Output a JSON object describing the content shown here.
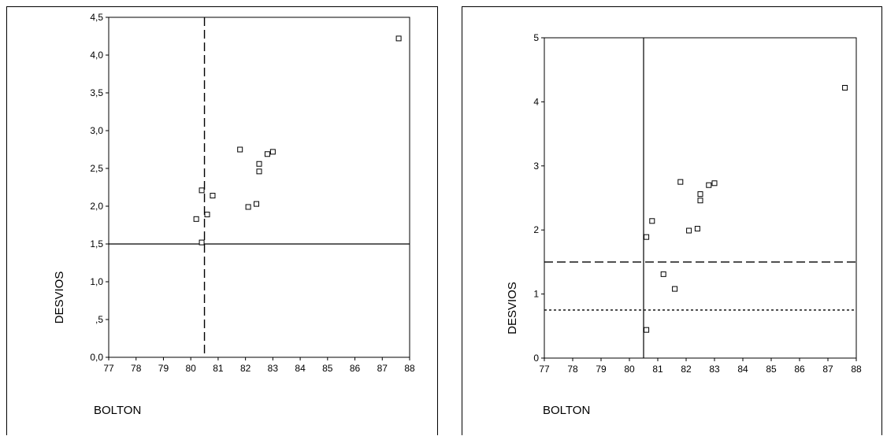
{
  "chart_data": [
    {
      "type": "scatter",
      "title": "",
      "xlabel": "BOLTON",
      "ylabel": "DESVIOS",
      "xlim": [
        77,
        88
      ],
      "ylim": [
        0,
        4.5
      ],
      "xticks": [
        77,
        78,
        79,
        80,
        81,
        82,
        83,
        84,
        85,
        86,
        87,
        88
      ],
      "xtick_labels": [
        "77",
        "78",
        "79",
        "80",
        "81",
        "82",
        "83",
        "84",
        "85",
        "86",
        "87",
        "88"
      ],
      "yticks": [
        0,
        0.5,
        1,
        1.5,
        2,
        2.5,
        3,
        3.5,
        4,
        4.5
      ],
      "ytick_labels": [
        "0,0",
        ",5",
        "1,0",
        "1,5",
        "2,0",
        "2,5",
        "3,0",
        "3,5",
        "4,0",
        "4,5"
      ],
      "grid": false,
      "marker": "open-square",
      "points": [
        {
          "x": 87.6,
          "y": 4.22
        },
        {
          "x": 81.8,
          "y": 2.75
        },
        {
          "x": 83.0,
          "y": 2.72
        },
        {
          "x": 82.8,
          "y": 2.69
        },
        {
          "x": 82.5,
          "y": 2.56
        },
        {
          "x": 82.5,
          "y": 2.46
        },
        {
          "x": 80.4,
          "y": 2.21
        },
        {
          "x": 80.8,
          "y": 2.14
        },
        {
          "x": 82.4,
          "y": 2.03
        },
        {
          "x": 82.1,
          "y": 1.99
        },
        {
          "x": 80.6,
          "y": 1.89
        },
        {
          "x": 80.2,
          "y": 1.83
        },
        {
          "x": 80.4,
          "y": 1.52
        }
      ],
      "reference_lines": [
        {
          "orientation": "vertical",
          "value": 80.5,
          "style": "dashed"
        },
        {
          "orientation": "horizontal",
          "value": 1.5,
          "style": "solid"
        }
      ]
    },
    {
      "type": "scatter",
      "title": "",
      "xlabel": "BOLTON",
      "ylabel": "DESVIOS",
      "xlim": [
        77,
        88
      ],
      "ylim": [
        0,
        5
      ],
      "xticks": [
        77,
        78,
        79,
        80,
        81,
        82,
        83,
        84,
        85,
        86,
        87,
        88
      ],
      "xtick_labels": [
        "77",
        "78",
        "79",
        "80",
        "81",
        "82",
        "83",
        "84",
        "85",
        "86",
        "87",
        "88"
      ],
      "yticks": [
        0,
        1,
        2,
        3,
        4,
        5
      ],
      "ytick_labels": [
        "0",
        "1",
        "2",
        "3",
        "4",
        "5"
      ],
      "grid": false,
      "marker": "open-square",
      "points": [
        {
          "x": 87.6,
          "y": 4.22
        },
        {
          "x": 81.8,
          "y": 2.75
        },
        {
          "x": 83.0,
          "y": 2.73
        },
        {
          "x": 82.8,
          "y": 2.7
        },
        {
          "x": 82.5,
          "y": 2.56
        },
        {
          "x": 82.5,
          "y": 2.46
        },
        {
          "x": 80.8,
          "y": 2.14
        },
        {
          "x": 82.4,
          "y": 2.02
        },
        {
          "x": 82.1,
          "y": 1.99
        },
        {
          "x": 80.6,
          "y": 1.89
        },
        {
          "x": 81.2,
          "y": 1.31
        },
        {
          "x": 81.6,
          "y": 1.08
        },
        {
          "x": 80.6,
          "y": 0.44
        }
      ],
      "reference_lines": [
        {
          "orientation": "vertical",
          "value": 80.5,
          "style": "solid"
        },
        {
          "orientation": "horizontal",
          "value": 1.5,
          "style": "dashed"
        },
        {
          "orientation": "horizontal",
          "value": 0.75,
          "style": "dotted"
        }
      ]
    }
  ]
}
